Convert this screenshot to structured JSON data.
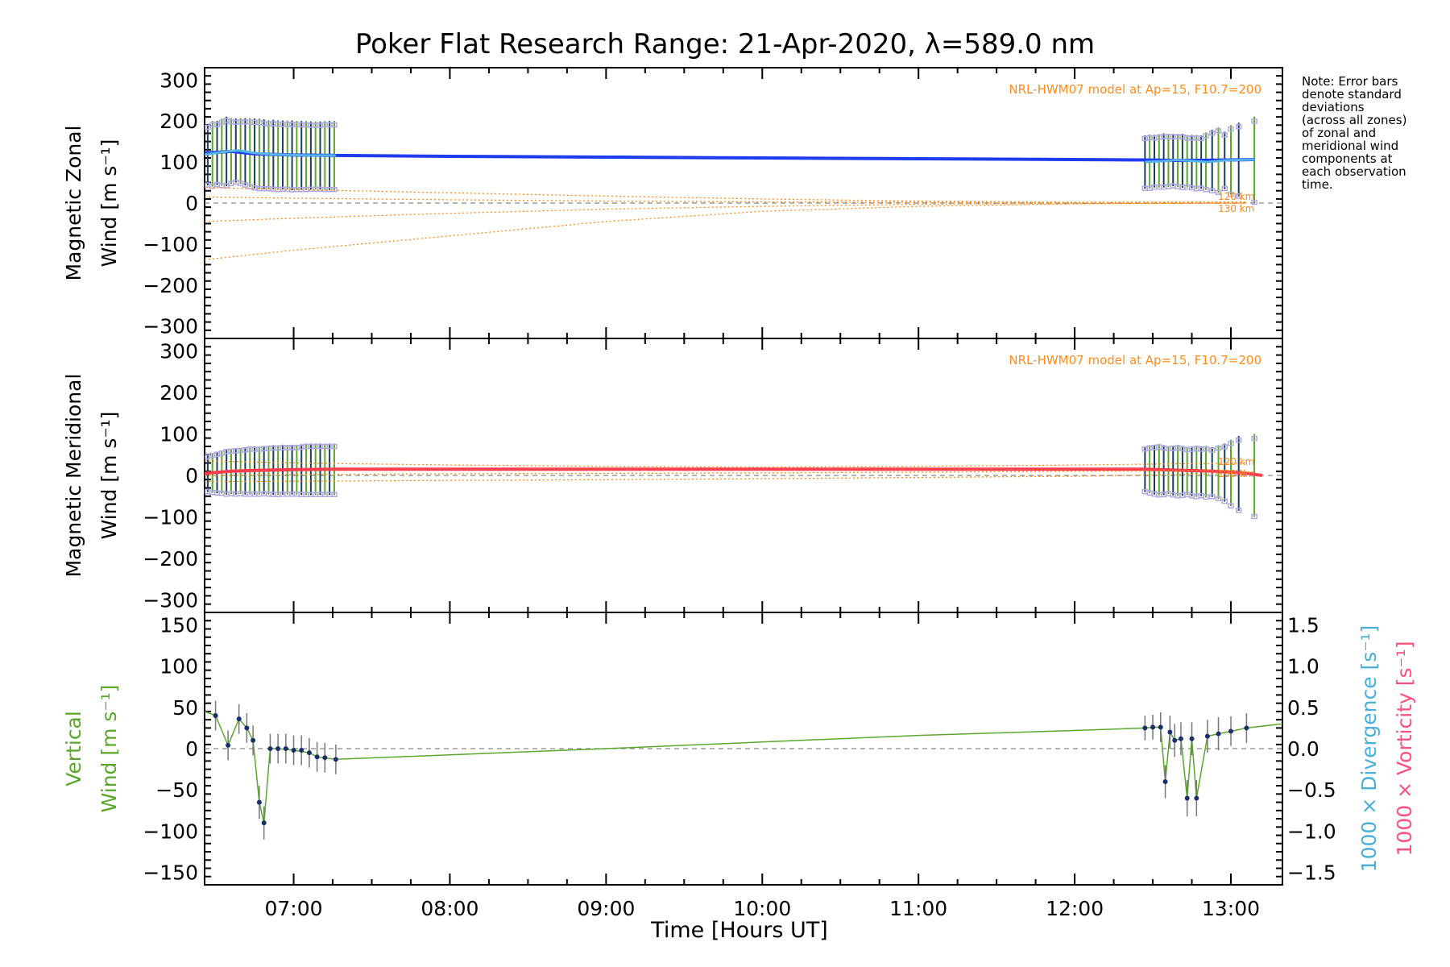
{
  "title": "Poker Flat Research Range: 21-Apr-2020, λ=589.0 nm",
  "xlabel": "Time [Hours UT]",
  "note": [
    "Note: Error bars",
    "denote standard",
    "deviations",
    "(across all zones)",
    "of zonal and",
    "meridional wind",
    "components at",
    "each observation",
    "time."
  ],
  "colors": {
    "zonal": "#1f3cf0",
    "zonal_light": "#56b4e9",
    "meridional": "#ff3d4d",
    "model": "#ff8c1a",
    "vertical": "#5aa82a",
    "divergence": "#4ab0d9",
    "vorticity": "#ff4f7d",
    "zone": "#b3a8e3",
    "errbar": "#1a3d5c",
    "axis": "#000000"
  },
  "chart_data": [
    {
      "type": "line",
      "id": "zonal",
      "ylabel_lines": [
        "Magnetic Zonal",
        "Wind [m s⁻¹]"
      ],
      "ylim": [
        -330,
        330
      ],
      "yticks": [
        -300,
        -200,
        -100,
        0,
        100,
        200,
        300
      ],
      "ytick_labels": [
        "−300",
        "−200",
        "−100",
        "0",
        "100",
        "200",
        "300"
      ],
      "xlim": [
        6.43,
        13.33
      ],
      "model_label": "NRL-HWM07 model at Ap=15, F10.7=200",
      "model_alt_labels": [
        "120 km",
        "130 km"
      ],
      "series": [
        {
          "role": "main",
          "x": [
            6.43,
            6.6,
            6.75,
            7.0,
            7.27,
            8.0,
            9.0,
            10.0,
            11.0,
            12.0,
            12.45,
            12.7,
            13.0,
            13.15
          ],
          "y": [
            122,
            126,
            120,
            117,
            116,
            114,
            112,
            110,
            108,
            106,
            105,
            104,
            105,
            106
          ]
        },
        {
          "role": "light",
          "x": [
            6.43,
            6.55,
            6.65,
            6.75,
            6.85,
            7.0,
            7.1,
            7.27
          ],
          "y": [
            118,
            125,
            128,
            122,
            119,
            117,
            116,
            116
          ]
        },
        {
          "role": "light",
          "x": [
            12.45,
            12.55,
            12.65,
            12.75,
            12.85,
            12.95,
            13.05,
            13.15
          ],
          "y": [
            100,
            102,
            105,
            103,
            100,
            104,
            105,
            106
          ]
        },
        {
          "role": "model",
          "x": [
            6.43,
            7.0,
            8.0,
            9.0,
            10.0,
            11.0,
            12.0,
            13.1
          ],
          "y": [
            -138,
            -115,
            -80,
            -45,
            -20,
            -8,
            -2,
            0
          ]
        },
        {
          "role": "model",
          "x": [
            6.43,
            7.0,
            8.0,
            9.0,
            10.0,
            11.0,
            12.0,
            13.1
          ],
          "y": [
            -45,
            -37,
            -25,
            -15,
            -8,
            -3,
            -1,
            0
          ]
        },
        {
          "role": "model",
          "x": [
            6.43,
            7.0,
            8.0,
            9.0,
            10.0,
            11.0,
            12.0,
            13.1
          ],
          "y": [
            15,
            12,
            8,
            5,
            3,
            2,
            1,
            2
          ]
        },
        {
          "role": "model",
          "x": [
            6.43,
            7.0,
            8.0,
            9.0,
            10.0,
            11.0,
            12.0,
            13.1
          ],
          "y": [
            38,
            33,
            25,
            17,
            10,
            5,
            2,
            3
          ]
        }
      ],
      "errorbars": {
        "x": [
          6.45,
          6.48,
          6.51,
          6.54,
          6.57,
          6.6,
          6.63,
          6.66,
          6.69,
          6.72,
          6.75,
          6.78,
          6.81,
          6.84,
          6.87,
          6.9,
          6.93,
          6.96,
          6.99,
          7.02,
          7.05,
          7.08,
          7.11,
          7.14,
          7.17,
          7.2,
          7.23,
          7.26,
          12.45,
          12.48,
          12.51,
          12.54,
          12.57,
          12.6,
          12.63,
          12.66,
          12.69,
          12.72,
          12.75,
          12.78,
          12.81,
          12.84,
          12.88,
          12.92,
          12.96,
          13.0,
          13.05,
          13.15
        ],
        "y": [
          118,
          120,
          122,
          124,
          126,
          127,
          128,
          127,
          125,
          123,
          121,
          120,
          119,
          118,
          118,
          117,
          117,
          117,
          116,
          116,
          116,
          116,
          116,
          116,
          116,
          116,
          116,
          116,
          100,
          101,
          102,
          103,
          104,
          104,
          105,
          104,
          103,
          102,
          101,
          100,
          100,
          102,
          104,
          105,
          104,
          105,
          106,
          106
        ],
        "err": [
          75,
          80,
          78,
          82,
          85,
          80,
          78,
          80,
          82,
          84,
          85,
          86,
          85,
          84,
          85,
          85,
          84,
          84,
          85,
          84,
          84,
          84,
          83,
          83,
          83,
          84,
          84,
          84,
          65,
          66,
          64,
          65,
          66,
          65,
          64,
          65,
          66,
          64,
          65,
          66,
          65,
          70,
          75,
          80,
          70,
          85,
          90,
          105
        ]
      }
    },
    {
      "type": "line",
      "id": "meridional",
      "ylabel_lines": [
        "Magnetic Meridional",
        "Wind [m s⁻¹]"
      ],
      "ylim": [
        -330,
        330
      ],
      "yticks": [
        -300,
        -200,
        -100,
        0,
        100,
        200,
        300
      ],
      "ytick_labels": [
        "−300",
        "−200",
        "−100",
        "0",
        "100",
        "200",
        "300"
      ],
      "xlim": [
        6.43,
        13.33
      ],
      "model_label": "NRL-HWM07 model at Ap=15, F10.7=200",
      "model_alt_labels": [
        "120 km",
        "130 km"
      ],
      "series": [
        {
          "role": "main",
          "x": [
            6.43,
            6.6,
            6.75,
            7.0,
            7.27,
            8.0,
            9.0,
            10.0,
            11.0,
            12.0,
            12.45,
            12.7,
            12.9,
            13.1,
            13.2
          ],
          "y": [
            5,
            10,
            12,
            14,
            15,
            15,
            15,
            15,
            15,
            15,
            15,
            12,
            10,
            5,
            0
          ]
        },
        {
          "role": "model",
          "x": [
            6.43,
            7.0,
            8.0,
            9.0,
            10.0,
            11.0,
            12.0,
            13.1
          ],
          "y": [
            -15,
            -14,
            -12,
            -10,
            -8,
            -5,
            -2,
            5
          ]
        },
        {
          "role": "model",
          "x": [
            6.43,
            7.0,
            8.0,
            9.0,
            10.0,
            11.0,
            12.0,
            13.1
          ],
          "y": [
            0,
            2,
            4,
            5,
            6,
            8,
            10,
            12
          ]
        },
        {
          "role": "model",
          "x": [
            6.43,
            7.0,
            8.0,
            9.0,
            10.0,
            11.0,
            12.0,
            13.1
          ],
          "y": [
            35,
            30,
            25,
            22,
            20,
            22,
            25,
            30
          ]
        }
      ],
      "errorbars": {
        "x": [
          6.45,
          6.48,
          6.51,
          6.54,
          6.57,
          6.6,
          6.63,
          6.66,
          6.69,
          6.72,
          6.75,
          6.78,
          6.81,
          6.84,
          6.87,
          6.9,
          6.93,
          6.96,
          6.99,
          7.02,
          7.05,
          7.08,
          7.11,
          7.14,
          7.17,
          7.2,
          7.23,
          7.26,
          12.45,
          12.48,
          12.51,
          12.54,
          12.57,
          12.6,
          12.63,
          12.66,
          12.69,
          12.72,
          12.75,
          12.78,
          12.81,
          12.84,
          12.88,
          12.92,
          12.96,
          13.0,
          13.05,
          13.15
        ],
        "y": [
          5,
          6,
          7,
          8,
          9,
          10,
          10,
          11,
          11,
          12,
          12,
          12,
          13,
          13,
          13,
          13,
          14,
          14,
          14,
          14,
          14,
          15,
          15,
          15,
          15,
          15,
          15,
          15,
          15,
          15,
          14,
          14,
          13,
          13,
          12,
          12,
          11,
          11,
          10,
          10,
          10,
          9,
          8,
          8,
          7,
          6,
          5,
          0
        ],
        "err": [
          45,
          48,
          50,
          52,
          55,
          55,
          56,
          56,
          57,
          58,
          58,
          58,
          58,
          59,
          60,
          60,
          60,
          60,
          60,
          60,
          61,
          62,
          62,
          62,
          62,
          62,
          62,
          62,
          55,
          58,
          60,
          62,
          60,
          58,
          60,
          62,
          60,
          58,
          60,
          62,
          60,
          62,
          60,
          65,
          70,
          80,
          90,
          100
        ]
      }
    },
    {
      "type": "line",
      "id": "vertical",
      "ylabel_lines": [
        "Vertical",
        "Wind [m s⁻¹]"
      ],
      "ylim": [
        -165,
        165
      ],
      "yticks": [
        -150,
        -100,
        -50,
        0,
        50,
        100,
        150
      ],
      "ytick_labels": [
        "−150",
        "−100",
        "−50",
        "0",
        "50",
        "100",
        "150"
      ],
      "xlim": [
        6.43,
        13.33
      ],
      "y2lim": [
        -1.65,
        1.65
      ],
      "y2ticks": [
        -1.5,
        -1.0,
        -0.5,
        0.0,
        0.5,
        1.0,
        1.5
      ],
      "y2tick_labels": [
        "−1.5",
        "−1.0",
        "−0.5",
        "0.0",
        "0.5",
        "1.0",
        "1.5"
      ],
      "y2labels": [
        "1000 × Divergence [s⁻¹]",
        "1000 × Vorticity [s⁻¹]"
      ],
      "series": [
        {
          "role": "vertical",
          "x": [
            6.43,
            6.5,
            6.58,
            6.65,
            6.7,
            6.74,
            6.78,
            6.81,
            6.85,
            6.9,
            7.0,
            7.1,
            7.15,
            7.27,
            9.0,
            10.0,
            11.0,
            12.0,
            12.45,
            12.52,
            12.55,
            12.58,
            12.61,
            12.64,
            12.68,
            12.72,
            12.75,
            12.78,
            12.85,
            12.92,
            13.0,
            13.1,
            13.33
          ],
          "y": [
            45,
            40,
            4,
            36,
            25,
            10,
            -65,
            -90,
            0,
            0,
            -2,
            -5,
            -10,
            -13,
            0,
            8,
            16,
            22,
            25,
            26,
            26,
            -40,
            20,
            10,
            12,
            -60,
            12,
            -60,
            15,
            18,
            21,
            25,
            30
          ]
        }
      ],
      "points": {
        "x": [
          6.5,
          6.58,
          6.65,
          6.7,
          6.74,
          6.78,
          6.81,
          6.85,
          6.9,
          6.95,
          7.0,
          7.05,
          7.1,
          7.15,
          7.2,
          7.27,
          12.45,
          12.5,
          12.55,
          12.58,
          12.61,
          12.64,
          12.68,
          12.72,
          12.75,
          12.78,
          12.85,
          12.92,
          13.0,
          13.1
        ],
        "y": [
          40,
          4,
          36,
          25,
          10,
          -65,
          -90,
          0,
          0,
          0,
          -2,
          -2,
          -5,
          -10,
          -11,
          -13,
          25,
          26,
          26,
          -40,
          20,
          10,
          12,
          -60,
          12,
          -60,
          15,
          18,
          21,
          25
        ],
        "err": [
          18,
          18,
          18,
          18,
          18,
          20,
          20,
          18,
          18,
          18,
          18,
          18,
          18,
          18,
          18,
          18,
          15,
          15,
          18,
          20,
          20,
          20,
          20,
          22,
          20,
          22,
          20,
          20,
          18,
          18
        ]
      }
    }
  ],
  "xaxis": {
    "ticks": [
      7,
      8,
      9,
      10,
      11,
      12,
      13
    ],
    "tick_labels": [
      "07:00",
      "08:00",
      "09:00",
      "10:00",
      "11:00",
      "12:00",
      "13:00"
    ]
  }
}
